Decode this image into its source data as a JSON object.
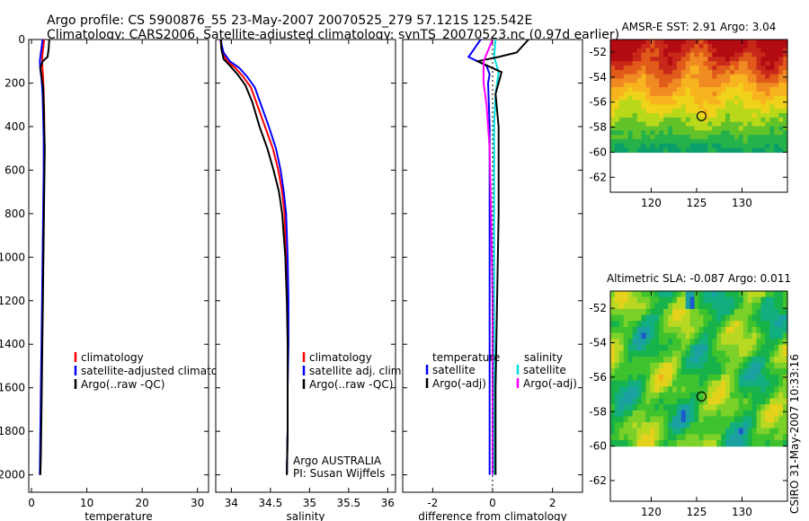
{
  "header": {
    "line1": "Argo profile: CS 5900876_55 23-May-2007 20070525_279 57.121S 125.542E",
    "line2": "Climatology: CARS2006. Satellite-adjusted climatology: synTS_20070523.nc (0.97d earlier)"
  },
  "side_label": "CSIRO 31-May-2007 10:33:16",
  "chart_data": [
    {
      "type": "line",
      "id": "temperature",
      "xlabel": "temperature",
      "ylabel": "",
      "xlim": [
        -0.5,
        32
      ],
      "ylim": [
        2080,
        0
      ],
      "xticks": [
        0,
        10,
        20,
        30
      ],
      "yticks": [
        0,
        200,
        400,
        600,
        800,
        1000,
        1200,
        1400,
        1600,
        1800,
        2000
      ],
      "ytick_labels": [
        "0",
        "200",
        "400",
        "600",
        "800",
        "1000",
        "1200",
        "1400",
        "1600",
        "1800",
        "2000"
      ],
      "legend": [
        "climatology",
        "satellite-adjusted climatology",
        "Argo(..raw -QC)"
      ],
      "series": [
        {
          "name": "climatology",
          "color": "#ff0000",
          "points": [
            [
              2.3,
              0
            ],
            [
              2.2,
              20
            ],
            [
              2.0,
              60
            ],
            [
              1.9,
              100
            ],
            [
              2.0,
              140
            ],
            [
              2.1,
              180
            ],
            [
              2.2,
              250
            ],
            [
              2.3,
              350
            ],
            [
              2.3,
              450
            ],
            [
              2.3,
              600
            ],
            [
              2.2,
              800
            ],
            [
              2.1,
              1000
            ],
            [
              2.0,
              1200
            ],
            [
              1.9,
              1400
            ],
            [
              1.8,
              1600
            ],
            [
              1.7,
              1800
            ],
            [
              1.6,
              2000
            ]
          ]
        },
        {
          "name": "satellite-adjusted climatology",
          "color": "#0000ff",
          "points": [
            [
              2.0,
              0
            ],
            [
              1.9,
              20
            ],
            [
              1.7,
              60
            ],
            [
              1.5,
              100
            ],
            [
              1.6,
              140
            ],
            [
              1.8,
              180
            ],
            [
              2.0,
              250
            ],
            [
              2.1,
              350
            ],
            [
              2.2,
              450
            ],
            [
              2.2,
              600
            ],
            [
              2.1,
              800
            ],
            [
              2.0,
              1000
            ],
            [
              1.9,
              1200
            ],
            [
              1.8,
              1400
            ],
            [
              1.7,
              1600
            ],
            [
              1.6,
              1800
            ],
            [
              1.5,
              2000
            ]
          ]
        },
        {
          "name": "Argo(..raw -QC)",
          "color": "#000000",
          "points": [
            [
              3.2,
              0
            ],
            [
              3.1,
              40
            ],
            [
              2.9,
              80
            ],
            [
              2.0,
              100
            ],
            [
              1.6,
              130
            ],
            [
              1.8,
              170
            ],
            [
              2.1,
              220
            ],
            [
              2.2,
              300
            ],
            [
              2.3,
              400
            ],
            [
              2.4,
              500
            ],
            [
              2.3,
              700
            ],
            [
              2.2,
              900
            ],
            [
              2.1,
              1100
            ],
            [
              2.0,
              1300
            ],
            [
              1.9,
              1500
            ],
            [
              1.8,
              1700
            ],
            [
              1.7,
              1900
            ],
            [
              1.6,
              2000
            ]
          ]
        }
      ]
    },
    {
      "type": "line",
      "id": "salinity",
      "xlabel": "salinity",
      "ylabel": "",
      "xlim": [
        33.8,
        36.1
      ],
      "ylim": [
        2080,
        0
      ],
      "xticks": [
        34,
        34.5,
        35,
        35.5,
        36
      ],
      "legend": [
        "climatology",
        "satellite adj. clim.",
        "Argo(..raw -QC)"
      ],
      "annotation": [
        "Argo AUSTRALIA",
        "PI: Susan Wijffels"
      ],
      "series": [
        {
          "name": "climatology",
          "color": "#ff0000",
          "points": [
            [
              33.86,
              0
            ],
            [
              33.88,
              60
            ],
            [
              33.95,
              100
            ],
            [
              34.05,
              130
            ],
            [
              34.15,
              170
            ],
            [
              34.25,
              220
            ],
            [
              34.33,
              300
            ],
            [
              34.43,
              400
            ],
            [
              34.53,
              500
            ],
            [
              34.6,
              600
            ],
            [
              34.65,
              700
            ],
            [
              34.68,
              800
            ],
            [
              34.7,
              1000
            ],
            [
              34.72,
              1200
            ],
            [
              34.72,
              1400
            ],
            [
              34.72,
              1600
            ],
            [
              34.72,
              1800
            ],
            [
              34.71,
              2000
            ]
          ]
        },
        {
          "name": "satellite adj. clim.",
          "color": "#0000ff",
          "points": [
            [
              33.86,
              0
            ],
            [
              33.9,
              60
            ],
            [
              33.98,
              100
            ],
            [
              34.1,
              130
            ],
            [
              34.2,
              170
            ],
            [
              34.3,
              220
            ],
            [
              34.38,
              300
            ],
            [
              34.48,
              400
            ],
            [
              34.57,
              500
            ],
            [
              34.63,
              600
            ],
            [
              34.67,
              700
            ],
            [
              34.7,
              800
            ],
            [
              34.72,
              1000
            ],
            [
              34.73,
              1200
            ],
            [
              34.73,
              1400
            ],
            [
              34.72,
              1600
            ],
            [
              34.72,
              1800
            ],
            [
              34.71,
              2000
            ]
          ]
        },
        {
          "name": "Argo(..raw -QC)",
          "color": "#000000",
          "points": [
            [
              33.87,
              0
            ],
            [
              33.87,
              40
            ],
            [
              33.9,
              90
            ],
            [
              33.98,
              120
            ],
            [
              34.08,
              160
            ],
            [
              34.18,
              210
            ],
            [
              34.27,
              290
            ],
            [
              34.36,
              400
            ],
            [
              34.46,
              500
            ],
            [
              34.54,
              600
            ],
            [
              34.61,
              700
            ],
            [
              34.65,
              800
            ],
            [
              34.69,
              1000
            ],
            [
              34.71,
              1200
            ],
            [
              34.72,
              1400
            ],
            [
              34.72,
              1600
            ],
            [
              34.72,
              1800
            ],
            [
              34.71,
              2000
            ]
          ]
        }
      ]
    },
    {
      "type": "line",
      "id": "difference",
      "xlabel": "difference from climatology",
      "ylabel": "",
      "xlim": [
        -3,
        3
      ],
      "ylim": [
        2080,
        0
      ],
      "xticks": [
        -2,
        0,
        2
      ],
      "legend_temperature_title": "temperature",
      "legend_salinity_title": "salinity",
      "legend_temperature": [
        "satellite",
        "Argo(-adj)"
      ],
      "legend_salinity": [
        "satellite",
        "Argo(-adj)"
      ],
      "series": [
        {
          "name": "temperature satellite",
          "color": "#0000ff",
          "points": [
            [
              -0.4,
              0
            ],
            [
              -0.8,
              80
            ],
            [
              -0.2,
              120
            ],
            [
              -0.1,
              160
            ],
            [
              -0.15,
              200
            ],
            [
              -0.1,
              400
            ],
            [
              -0.1,
              800
            ],
            [
              -0.1,
              1200
            ],
            [
              -0.1,
              1600
            ],
            [
              -0.1,
              2000
            ]
          ]
        },
        {
          "name": "salinity satellite",
          "color": "#00dddd",
          "points": [
            [
              0.1,
              0
            ],
            [
              0.05,
              80
            ],
            [
              0.2,
              150
            ],
            [
              0.1,
              250
            ],
            [
              0.05,
              400
            ],
            [
              0.05,
              800
            ],
            [
              0.05,
              1200
            ],
            [
              0.05,
              1600
            ],
            [
              0.05,
              2000
            ]
          ]
        },
        {
          "name": "temperature Argo(-adj)",
          "color": "#000000",
          "points": [
            [
              1.2,
              0
            ],
            [
              0.8,
              60
            ],
            [
              0.2,
              80
            ],
            [
              -0.5,
              100
            ],
            [
              0.3,
              150
            ],
            [
              0.1,
              250
            ],
            [
              0.2,
              400
            ],
            [
              0.2,
              800
            ],
            [
              0.15,
              1200
            ],
            [
              0.1,
              1600
            ],
            [
              0.1,
              2000
            ]
          ]
        },
        {
          "name": "salinity Argo(-adj)",
          "color": "#ff00ff",
          "points": [
            [
              0.0,
              0
            ],
            [
              -0.3,
              100
            ],
            [
              -0.3,
              200
            ],
            [
              -0.2,
              300
            ],
            [
              -0.1,
              500
            ],
            [
              -0.05,
              800
            ],
            [
              0.0,
              1200
            ],
            [
              0.0,
              1600
            ],
            [
              0.0,
              2000
            ]
          ]
        }
      ]
    },
    {
      "type": "heatmap",
      "id": "sst",
      "title": "AMSR-E SST: 2.91 Argo: 3.04",
      "xlim": [
        115.5,
        135
      ],
      "ylim": [
        -63.2,
        -51
      ],
      "xticks": [
        120,
        125,
        130
      ],
      "yticks": [
        -52,
        -54,
        -56,
        -58,
        -60,
        -62
      ],
      "data_extent_y": [
        -60,
        -51
      ],
      "marker": [
        125.542,
        -57.121
      ],
      "palette": [
        "#0a9e6a",
        "#26b24a",
        "#62c22a",
        "#b8d81a",
        "#f0d21a",
        "#f8b41e",
        "#f08a22",
        "#e05a1a",
        "#c8281a",
        "#b40a12"
      ]
    },
    {
      "type": "heatmap",
      "id": "sla",
      "title": "Altimetric SLA: -0.087 Argo: 0.011",
      "xlim": [
        115.5,
        135
      ],
      "ylim": [
        -63.2,
        -51
      ],
      "xticks": [
        120,
        125,
        130
      ],
      "yticks": [
        -52,
        -54,
        -56,
        -58,
        -60,
        -62
      ],
      "data_extent_y": [
        -60,
        -51
      ],
      "marker": [
        125.542,
        -57.121
      ],
      "palette": [
        "#0a1eaa",
        "#1a5acc",
        "#1aa0a0",
        "#12ae80",
        "#18b24a",
        "#3ec22e",
        "#7cd02a",
        "#b8d822",
        "#e6d21c",
        "#f0b21e"
      ]
    }
  ]
}
